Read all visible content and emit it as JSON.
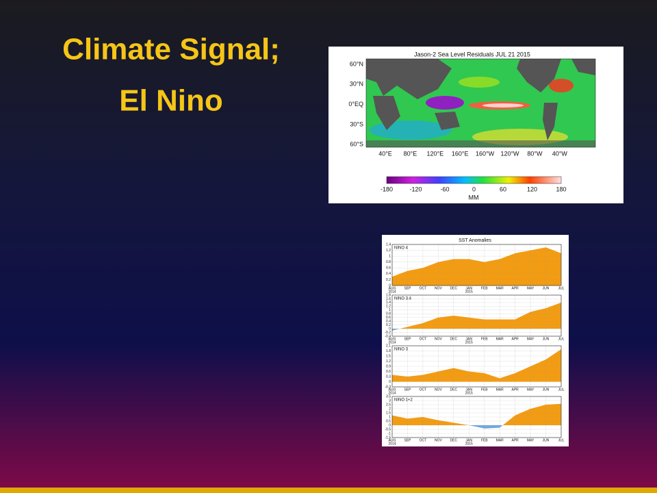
{
  "title": [
    "Climate Signal;",
    "El Nino"
  ],
  "sea_level_map": {
    "title": "Jason-2 Sea Level Residuals JUL 21 2015",
    "lat_labels": [
      "60°N",
      "30°N",
      "0°EQ",
      "30°S",
      "60°S"
    ],
    "lon_labels": [
      "40°E",
      "80°E",
      "120°E",
      "160°E",
      "160°W",
      "120°W",
      "80°W",
      "40°W"
    ],
    "colorbar_ticks": [
      -180,
      -120,
      -60,
      0,
      60,
      120,
      180
    ],
    "colorbar_unit": "MM"
  },
  "sst": {
    "title": "SST Anomalies",
    "months": [
      "AUG",
      "SEP",
      "OCT",
      "NOV",
      "DEC",
      "JAN",
      "FEB",
      "MAR",
      "APR",
      "MAY",
      "JUN",
      "JUL"
    ],
    "years": [
      "2014",
      "2015"
    ],
    "positive_color": "#f39c12",
    "negative_color": "#6fa8dc",
    "panels": [
      {
        "name": "NINO 4",
        "values": [
          0.3,
          0.5,
          0.6,
          0.8,
          0.9,
          0.9,
          0.8,
          0.9,
          1.1,
          1.2,
          1.3,
          1.1
        ],
        "ylim": [
          0,
          1.4
        ],
        "yticks": [
          0,
          0.2,
          0.4,
          0.6,
          0.8,
          1,
          1.2,
          1.4
        ]
      },
      {
        "name": "NINO 3.4",
        "values": [
          -0.1,
          0.1,
          0.3,
          0.6,
          0.7,
          0.6,
          0.5,
          0.5,
          0.5,
          0.9,
          1.1,
          1.4
        ],
        "ylim": [
          -0.4,
          1.8
        ],
        "yticks": [
          -0.4,
          -0.2,
          0,
          0.2,
          0.4,
          0.6,
          0.8,
          1,
          1.2,
          1.4,
          1.6,
          1.8
        ]
      },
      {
        "name": "NINO 3",
        "values": [
          0.4,
          0.3,
          0.4,
          0.6,
          0.8,
          0.6,
          0.5,
          0.2,
          0.5,
          0.9,
          1.3,
          1.9
        ],
        "ylim": [
          -0.3,
          2.1
        ],
        "yticks": [
          -0.3,
          0,
          0.3,
          0.6,
          0.9,
          1.2,
          1.5,
          1.8,
          2.1
        ]
      },
      {
        "name": "NINO 1+2",
        "values": [
          1.2,
          0.8,
          1,
          0.6,
          0.3,
          0,
          -0.4,
          -0.3,
          1.2,
          2,
          2.5,
          2.6
        ],
        "ylim": [
          -1.5,
          3.5
        ],
        "yticks": [
          -1.5,
          -1,
          -0.5,
          0,
          0.5,
          1,
          1.5,
          2,
          2.5,
          3,
          3.5
        ]
      }
    ]
  }
}
